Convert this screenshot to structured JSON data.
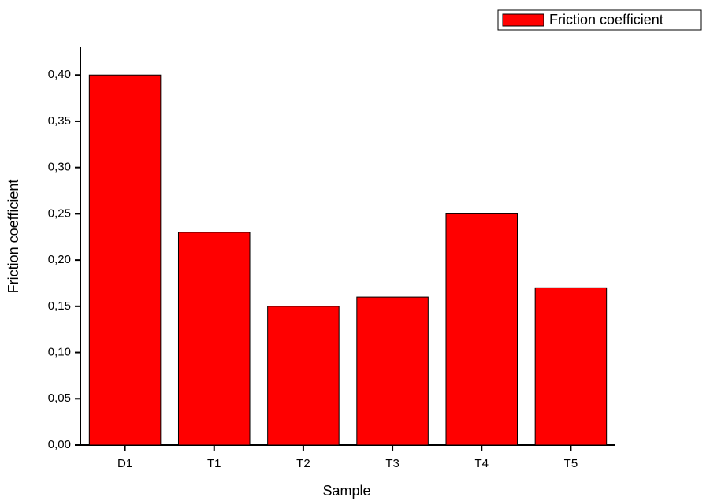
{
  "chart_data": {
    "type": "bar",
    "x_label": "Sample",
    "y_label": "Friction coefficient",
    "categories": [
      "D1",
      "T1",
      "T2",
      "T3",
      "T4",
      "T5"
    ],
    "series": [
      {
        "name": "Friction coefficient",
        "color": "#ff0000",
        "values": [
          0.4,
          0.23,
          0.15,
          0.16,
          0.25,
          0.17
        ]
      }
    ],
    "ylim": [
      0,
      0.43
    ],
    "yticks": [
      {
        "value": 0,
        "label": "0,00"
      },
      {
        "value": 0.05,
        "label": "0,05"
      },
      {
        "value": 0.1,
        "label": "0,10"
      },
      {
        "value": 0.15,
        "label": "0,15"
      },
      {
        "value": 0.2,
        "label": "0,20"
      },
      {
        "value": 0.25,
        "label": "0,25"
      },
      {
        "value": 0.3,
        "label": "0,30"
      },
      {
        "value": 0.35,
        "label": "0,35"
      },
      {
        "value": 0.4,
        "label": "0,40"
      }
    ],
    "legend": "top-right",
    "grid": false
  }
}
